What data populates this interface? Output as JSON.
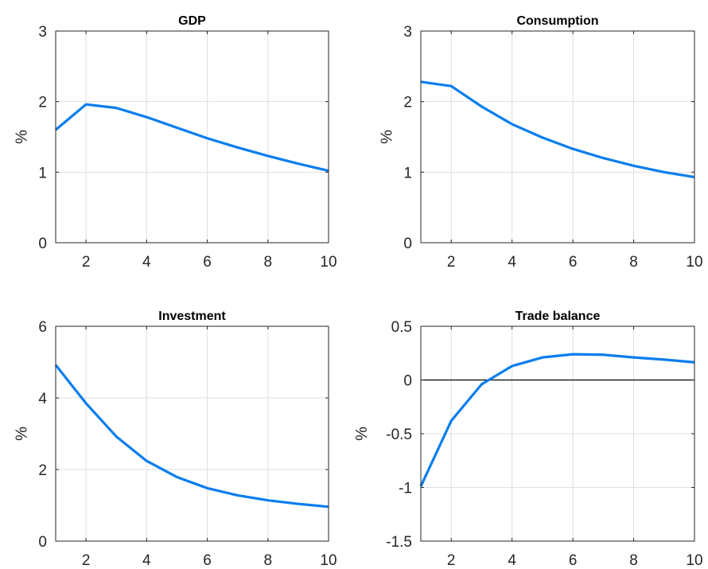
{
  "colors": {
    "series": "#0a7eed",
    "grid": "#dfdfdf",
    "axis": "#262626",
    "zero_line": "#000000"
  },
  "chart_data": [
    {
      "type": "line",
      "title": "GDP",
      "xlabel": "",
      "ylabel": "%",
      "xlim": [
        1,
        10
      ],
      "ylim": [
        0,
        3
      ],
      "xticks": [
        "2",
        "4",
        "6",
        "8",
        "10"
      ],
      "yticks": [
        "0",
        "1",
        "2",
        "3"
      ],
      "grid": true,
      "x": [
        1,
        2,
        3,
        4,
        5,
        6,
        7,
        8,
        9,
        10
      ],
      "series": [
        {
          "values": [
            1.6,
            1.96,
            1.91,
            1.78,
            1.63,
            1.48,
            1.35,
            1.23,
            1.12,
            1.02
          ]
        }
      ]
    },
    {
      "type": "line",
      "title": "Consumption",
      "xlabel": "",
      "ylabel": "%",
      "xlim": [
        1,
        10
      ],
      "ylim": [
        0,
        3
      ],
      "xticks": [
        "2",
        "4",
        "6",
        "8",
        "10"
      ],
      "yticks": [
        "0",
        "1",
        "2",
        "3"
      ],
      "grid": true,
      "x": [
        1,
        2,
        3,
        4,
        5,
        6,
        7,
        8,
        9,
        10
      ],
      "series": [
        {
          "values": [
            2.28,
            2.22,
            1.93,
            1.68,
            1.49,
            1.33,
            1.2,
            1.09,
            1.0,
            0.93
          ]
        }
      ]
    },
    {
      "type": "line",
      "title": "Investment",
      "xlabel": "",
      "ylabel": "%",
      "xlim": [
        1,
        10
      ],
      "ylim": [
        0,
        6
      ],
      "xticks": [
        "2",
        "4",
        "6",
        "8",
        "10"
      ],
      "yticks": [
        "0",
        "2",
        "4",
        "6"
      ],
      "grid": true,
      "x": [
        1,
        2,
        3,
        4,
        5,
        6,
        7,
        8,
        9,
        10
      ],
      "series": [
        {
          "values": [
            4.92,
            3.85,
            2.92,
            2.24,
            1.79,
            1.48,
            1.28,
            1.14,
            1.04,
            0.96
          ]
        }
      ]
    },
    {
      "type": "line",
      "title": "Trade balance",
      "xlabel": "",
      "ylabel": "%",
      "xlim": [
        1,
        10
      ],
      "ylim": [
        -1.5,
        0.5
      ],
      "xticks": [
        "2",
        "4",
        "6",
        "8",
        "10"
      ],
      "yticks": [
        "-1.5",
        "-1",
        "-0.5",
        "0",
        "0.5"
      ],
      "grid": true,
      "zero_line": true,
      "x": [
        1,
        2,
        3,
        4,
        5,
        6,
        7,
        8,
        9,
        10
      ],
      "series": [
        {
          "values": [
            -0.99,
            -0.38,
            -0.04,
            0.13,
            0.21,
            0.24,
            0.235,
            0.21,
            0.19,
            0.165
          ]
        }
      ]
    }
  ]
}
